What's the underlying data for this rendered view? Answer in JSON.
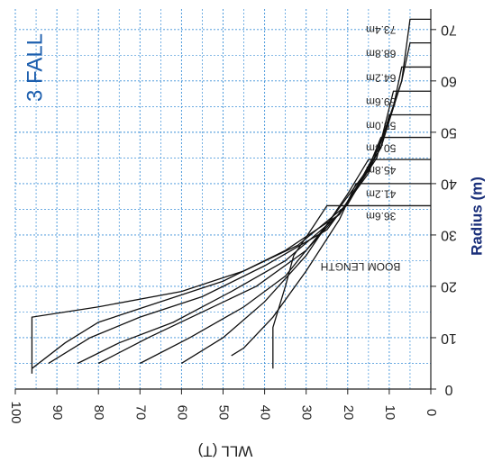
{
  "chart_data": {
    "type": "line",
    "title": "3 FALL",
    "annotation": "BOOM LENGTH",
    "x_label": "WLL (T)",
    "y_label": "Radius (m)",
    "xlim": [
      100,
      0
    ],
    "ylim": [
      0,
      74
    ],
    "xticks": [
      100,
      90,
      80,
      70,
      60,
      50,
      40,
      30,
      20,
      10,
      0
    ],
    "yticks": [
      0,
      10,
      20,
      30,
      40,
      50,
      60,
      70
    ],
    "x_minor_ticks": [
      95,
      85,
      75,
      65,
      55,
      45,
      35,
      25,
      15,
      5
    ],
    "y_minor_ticks": [
      5,
      15,
      25,
      35,
      45,
      55,
      65
    ],
    "grid": true,
    "grid_color": "#3a8fd8",
    "series": [
      {
        "name": "36.6m",
        "color": "#111111",
        "x": [
          38,
          38,
          35,
          33,
          28,
          25,
          0
        ],
        "y": [
          4,
          12,
          20,
          26,
          32,
          35.7,
          35.7
        ]
      },
      {
        "name": "41.2m",
        "color": "#111111",
        "x": [
          48,
          45,
          38,
          30,
          22,
          18,
          0
        ],
        "y": [
          6.5,
          8,
          14,
          23,
          33,
          40,
          40
        ]
      },
      {
        "name": "45.8m",
        "color": "#111111",
        "x": [
          60,
          50,
          40,
          30,
          20,
          15,
          0
        ],
        "y": [
          5,
          10,
          17,
          26,
          38,
          44.7,
          44.7
        ]
      },
      {
        "name": "50.4m",
        "color": "#111111",
        "x": [
          70,
          58,
          45,
          35,
          25,
          15,
          12,
          0
        ],
        "y": [
          5,
          10,
          16,
          22,
          32,
          43,
          49,
          49
        ]
      },
      {
        "name": "55.0m",
        "color": "#111111",
        "x": [
          80,
          68,
          55,
          42,
          30,
          20,
          12,
          10,
          0
        ],
        "y": [
          5,
          10,
          15,
          20,
          27,
          36,
          47,
          53.4,
          53.4
        ]
      },
      {
        "name": "59.6m",
        "color": "#111111",
        "x": [
          85,
          75,
          62,
          48,
          35,
          22,
          13,
          9,
          0
        ],
        "y": [
          5,
          9,
          13,
          19,
          25,
          34,
          45,
          58,
          58
        ]
      },
      {
        "name": "64.2m",
        "color": "#111111",
        "x": [
          92,
          82,
          70,
          55,
          40,
          25,
          15,
          9,
          7,
          0
        ],
        "y": [
          5,
          10,
          14,
          18,
          24,
          31,
          42,
          55,
          62.7,
          62.7
        ]
      },
      {
        "name": "68.8m",
        "color": "#111111",
        "x": [
          96,
          88,
          80,
          65,
          50,
          35,
          22,
          12,
          7,
          5,
          0
        ],
        "y": [
          4,
          9,
          13,
          17,
          21,
          27,
          34,
          47,
          60,
          67.4,
          67.4
        ]
      },
      {
        "name": "73.4m",
        "color": "#111111",
        "x": [
          96,
          96,
          80,
          60,
          45,
          32,
          20,
          12,
          7,
          5,
          0
        ],
        "y": [
          3,
          14,
          16,
          19,
          23,
          28,
          36,
          48,
          60,
          72,
          72
        ]
      }
    ]
  }
}
